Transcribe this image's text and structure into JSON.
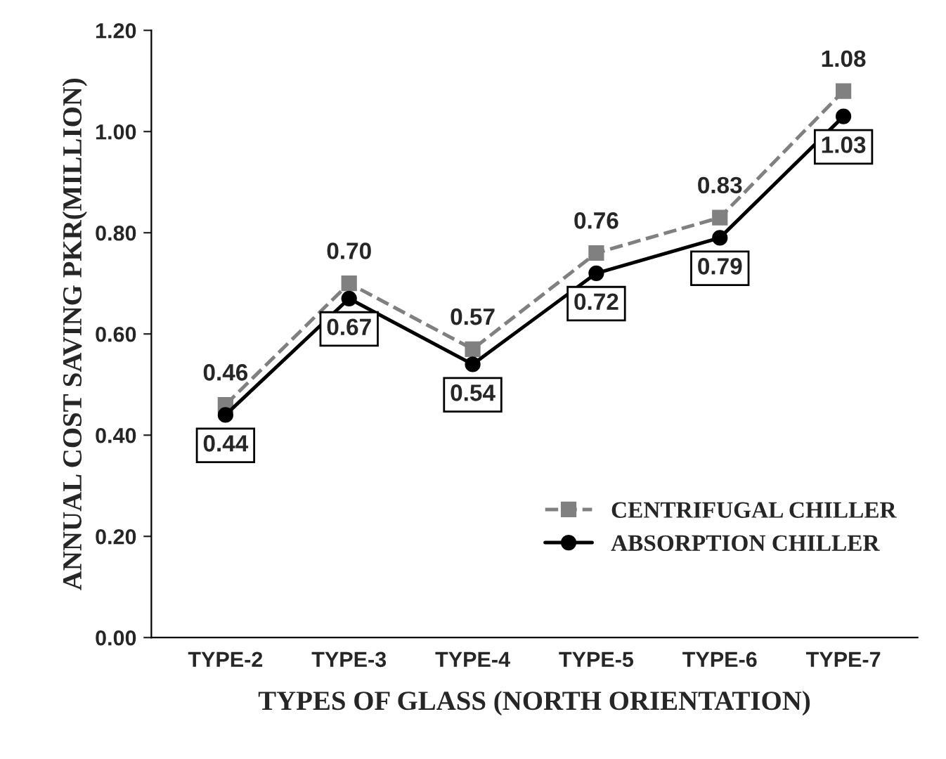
{
  "chart_data": {
    "type": "line",
    "xlabel": "TYPES OF GLASS (NORTH ORIENTATION)",
    "ylabel": "ANNUAL COST SAVING PKR(MILLION)",
    "categories": [
      "TYPE-2",
      "TYPE-3",
      "TYPE-4",
      "TYPE-5",
      "TYPE-6",
      "TYPE-7"
    ],
    "series": [
      {
        "name": "CENTRIFUGAL CHILLER",
        "color": "#808080",
        "marker": "square",
        "line_style": "dashed",
        "values": [
          0.46,
          0.7,
          0.57,
          0.76,
          0.83,
          1.08
        ],
        "value_labels": [
          "0.46",
          "0.70",
          "0.57",
          "0.76",
          "0.83",
          "1.08"
        ]
      },
      {
        "name": "ABSORPTION CHILLER",
        "color": "#000000",
        "marker": "circle",
        "line_style": "solid",
        "values": [
          0.44,
          0.67,
          0.54,
          0.72,
          0.79,
          1.03
        ],
        "value_labels": [
          "0.44",
          "0.67",
          "0.54",
          "0.72",
          "0.79",
          "1.03"
        ]
      }
    ],
    "ylim": [
      0,
      1.2
    ],
    "yticks": [
      {
        "value": 0,
        "label": "0.00"
      },
      {
        "value": 0.2,
        "label": "0.20"
      },
      {
        "value": 0.4,
        "label": "0.40"
      },
      {
        "value": 0.6,
        "label": "0.60"
      },
      {
        "value": 0.8,
        "label": "0.80"
      },
      {
        "value": 1.0,
        "label": "1.00"
      },
      {
        "value": 1.2,
        "label": "1.20"
      }
    ],
    "grid": false,
    "legend": "bottom right"
  }
}
